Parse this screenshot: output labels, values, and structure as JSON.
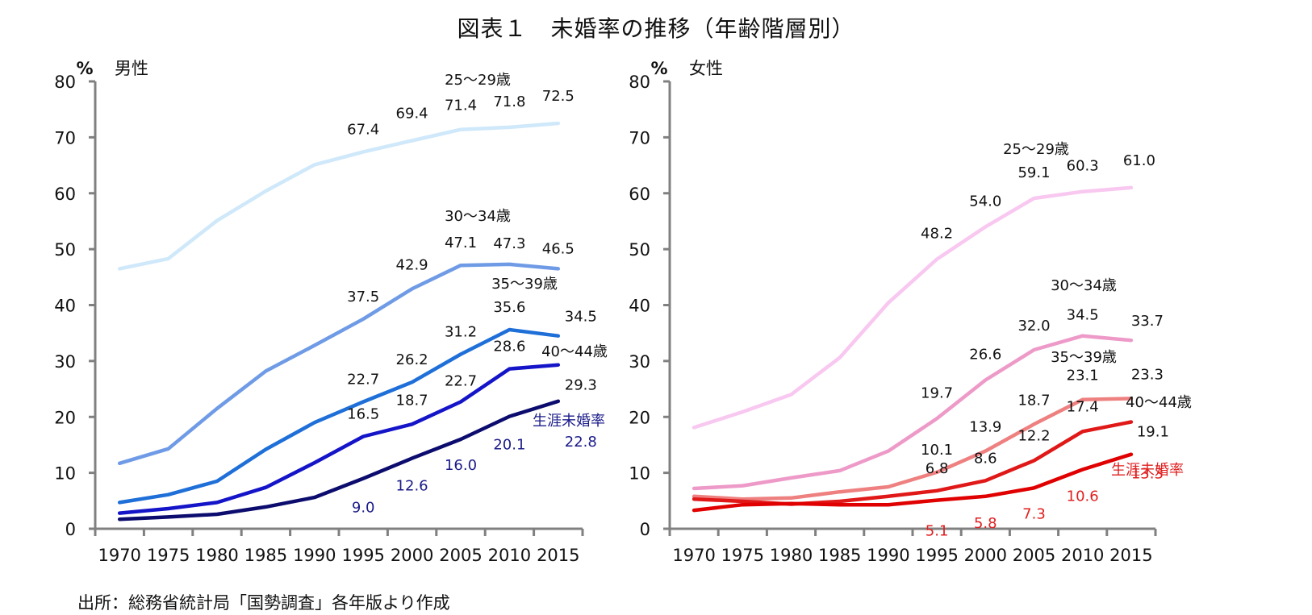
{
  "title": "図表１　未婚率の推移（年齢階層別）",
  "source": "出所：総務省統計局「国勢調査」各年版より作成",
  "chart_data": [
    {
      "type": "line",
      "panel": "male",
      "title": "男性",
      "ylabel": "%",
      "xlabel": "",
      "ylim": [
        0,
        80
      ],
      "yticks": [
        0,
        10,
        20,
        30,
        40,
        50,
        60,
        70,
        80
      ],
      "grid": false,
      "categories": [
        "1970",
        "1975",
        "1980",
        "1985",
        "1990",
        "1995",
        "2000",
        "2005",
        "2010",
        "2015"
      ],
      "series": [
        {
          "name": "25〜29歳",
          "color": "#cfe8fa",
          "label_color": "#111111",
          "values": [
            46.5,
            48.3,
            55.1,
            60.4,
            65.1,
            67.4,
            69.4,
            71.4,
            71.8,
            72.5
          ],
          "labels": [
            null,
            null,
            null,
            null,
            null,
            "67.4",
            "69.4",
            "71.4",
            "71.8",
            "72.5"
          ]
        },
        {
          "name": "30〜34歳",
          "color": "#6f9be6",
          "label_color": "#111111",
          "values": [
            11.7,
            14.3,
            21.5,
            28.2,
            32.8,
            37.5,
            42.9,
            47.1,
            47.3,
            46.5
          ],
          "labels": [
            null,
            null,
            null,
            null,
            null,
            "37.5",
            "42.9",
            "47.1",
            "47.3",
            "46.5"
          ]
        },
        {
          "name": "35〜39歳",
          "color": "#1f6fd8",
          "label_color": "#111111",
          "values": [
            4.7,
            6.1,
            8.5,
            14.2,
            19.0,
            22.7,
            26.2,
            31.2,
            35.6,
            34.5
          ],
          "labels": [
            null,
            null,
            null,
            null,
            null,
            "22.7",
            "26.2",
            "31.2",
            "35.6",
            "34.5"
          ]
        },
        {
          "name": "40〜44歳",
          "color": "#1414c8",
          "label_color": "#111111",
          "values": [
            2.8,
            3.6,
            4.7,
            7.4,
            11.8,
            16.5,
            18.7,
            22.7,
            28.6,
            29.3
          ],
          "labels": [
            null,
            null,
            null,
            null,
            null,
            "16.5",
            "18.7",
            "22.7",
            "28.6",
            "29.3"
          ]
        },
        {
          "name": "生涯未婚率",
          "color": "#0c0c6e",
          "label_color": "#1b1b8a",
          "values": [
            1.7,
            2.1,
            2.6,
            3.9,
            5.6,
            9.0,
            12.6,
            16.0,
            20.1,
            22.8
          ],
          "labels": [
            null,
            null,
            null,
            null,
            null,
            "9.0",
            "12.6",
            "16.0",
            "20.1",
            "22.8"
          ]
        }
      ]
    },
    {
      "type": "line",
      "panel": "female",
      "title": "女性",
      "ylabel": "%",
      "xlabel": "",
      "ylim": [
        0,
        80
      ],
      "yticks": [
        0,
        10,
        20,
        30,
        40,
        50,
        60,
        70,
        80
      ],
      "grid": false,
      "categories": [
        "1970",
        "1975",
        "1980",
        "1985",
        "1990",
        "1995",
        "2000",
        "2005",
        "2010",
        "2015"
      ],
      "series": [
        {
          "name": "25〜29歳",
          "color": "#f8c8f0",
          "label_color": "#111111",
          "values": [
            18.1,
            20.9,
            24.0,
            30.6,
            40.4,
            48.2,
            54.0,
            59.1,
            60.3,
            61.0
          ],
          "labels": [
            null,
            null,
            null,
            null,
            null,
            "48.2",
            "54.0",
            "59.1",
            "60.3",
            "61.0"
          ]
        },
        {
          "name": "30〜34歳",
          "color": "#ee9ac8",
          "label_color": "#111111",
          "values": [
            7.2,
            7.7,
            9.1,
            10.4,
            13.9,
            19.7,
            26.6,
            32.0,
            34.5,
            33.7
          ],
          "labels": [
            null,
            null,
            null,
            null,
            null,
            "19.7",
            "26.6",
            "32.0",
            "34.5",
            "33.7"
          ]
        },
        {
          "name": "35〜39歳",
          "color": "#ee8080",
          "label_color": "#111111",
          "values": [
            5.8,
            5.3,
            5.5,
            6.6,
            7.5,
            10.1,
            13.9,
            18.7,
            23.1,
            23.3
          ],
          "labels": [
            null,
            null,
            null,
            null,
            null,
            "10.1",
            "13.9",
            "18.7",
            "23.1",
            "23.3"
          ]
        },
        {
          "name": "40〜44歳",
          "color": "#e01818",
          "label_color": "#111111",
          "values": [
            5.3,
            4.9,
            4.4,
            4.9,
            5.8,
            6.8,
            8.6,
            12.2,
            17.4,
            19.1
          ],
          "labels": [
            null,
            null,
            null,
            null,
            null,
            "6.8",
            "8.6",
            "12.2",
            "17.4",
            "19.1"
          ]
        },
        {
          "name": "生涯未婚率",
          "color": "#e00000",
          "label_color": "#e02020",
          "values": [
            3.3,
            4.3,
            4.5,
            4.3,
            4.3,
            5.1,
            5.8,
            7.3,
            10.6,
            13.3
          ],
          "labels": [
            null,
            null,
            null,
            null,
            null,
            "5.1",
            "5.8",
            "7.3",
            "10.6",
            "13.3"
          ]
        }
      ]
    }
  ]
}
